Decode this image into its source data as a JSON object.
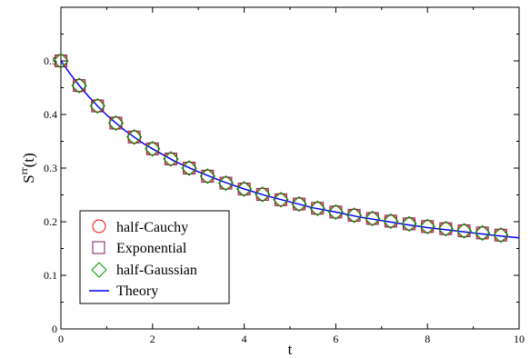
{
  "chart_data": {
    "type": "scatter",
    "title": "",
    "xlabel": "t",
    "ylabel_main": "S",
    "ylabel_sup": "rr",
    "ylabel_arg": "(t)",
    "xlim": [
      0,
      10
    ],
    "ylim": [
      0,
      0.6
    ],
    "x_ticks": [
      0,
      2,
      4,
      6,
      8,
      10
    ],
    "x_tick_labels": [
      "0",
      "2",
      "4",
      "6",
      "8",
      "10"
    ],
    "y_ticks": [
      0,
      0.1,
      0.2,
      0.3,
      0.4,
      0.5
    ],
    "y_tick_labels": [
      "0",
      "0.1",
      "0.2",
      "0.3",
      "0.4",
      "0.5"
    ],
    "grid": false,
    "legend_position": "bottom-left",
    "x": [
      0,
      0.4,
      0.8,
      1.2,
      1.6,
      2.0,
      2.4,
      2.8,
      3.2,
      3.6,
      4.0,
      4.4,
      4.8,
      5.2,
      5.6,
      6.0,
      6.4,
      6.8,
      7.2,
      7.6,
      8.0,
      8.4,
      8.8,
      9.2,
      9.6
    ],
    "series": [
      {
        "name": "half-Cauchy",
        "kind": "marker",
        "marker": "circle",
        "color": "#ff0000",
        "values": [
          0.5,
          0.454,
          0.416,
          0.384,
          0.358,
          0.336,
          0.317,
          0.3,
          0.285,
          0.272,
          0.261,
          0.251,
          0.241,
          0.233,
          0.225,
          0.218,
          0.212,
          0.206,
          0.201,
          0.196,
          0.191,
          0.187,
          0.183,
          0.179,
          0.175
        ]
      },
      {
        "name": "Exponential",
        "kind": "marker",
        "marker": "square",
        "color": "#7b1f55",
        "values": [
          0.5,
          0.454,
          0.416,
          0.384,
          0.358,
          0.336,
          0.317,
          0.3,
          0.285,
          0.272,
          0.261,
          0.251,
          0.241,
          0.233,
          0.225,
          0.218,
          0.212,
          0.206,
          0.201,
          0.196,
          0.191,
          0.187,
          0.183,
          0.179,
          0.175
        ]
      },
      {
        "name": "half-Gaussian",
        "kind": "marker",
        "marker": "diamond",
        "color": "#009900",
        "values": [
          0.5,
          0.454,
          0.416,
          0.384,
          0.358,
          0.336,
          0.317,
          0.3,
          0.285,
          0.272,
          0.261,
          0.251,
          0.241,
          0.233,
          0.225,
          0.218,
          0.212,
          0.206,
          0.201,
          0.196,
          0.191,
          0.187,
          0.183,
          0.179,
          0.175
        ]
      },
      {
        "name": "Theory",
        "kind": "line",
        "color": "#0000ff",
        "x": [
          0,
          0.2,
          0.4,
          0.6,
          0.8,
          1.0,
          1.2,
          1.4,
          1.6,
          1.8,
          2.0,
          2.5,
          3.0,
          3.5,
          4.0,
          4.5,
          5.0,
          5.5,
          6.0,
          6.5,
          7.0,
          7.5,
          8.0,
          8.5,
          9.0,
          9.5,
          10.0
        ],
        "values": [
          0.5,
          0.476,
          0.454,
          0.434,
          0.416,
          0.399,
          0.384,
          0.37,
          0.358,
          0.346,
          0.336,
          0.312,
          0.293,
          0.276,
          0.261,
          0.248,
          0.237,
          0.226,
          0.218,
          0.209,
          0.202,
          0.195,
          0.189,
          0.184,
          0.179,
          0.174,
          0.17
        ]
      }
    ]
  }
}
